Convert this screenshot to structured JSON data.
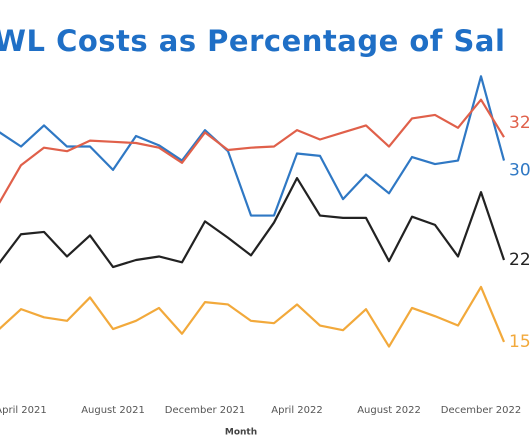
{
  "chart_data": {
    "type": "line",
    "title": "WL Costs as Percentage of Sal",
    "x_label": "Month",
    "categories": [
      null,
      "April 2021",
      null,
      null,
      null,
      "August 2021",
      null,
      null,
      null,
      "December 2021",
      null,
      null,
      null,
      "April 2022",
      null,
      null,
      null,
      "August 2022",
      null,
      null,
      null,
      "December 2022",
      null
    ],
    "ylim": [
      10,
      40
    ],
    "series": [
      {
        "name": "Blue",
        "color": "#2f78c4",
        "values": [
          33.0,
          31.7,
          33.5,
          31.7,
          31.7,
          29.7,
          32.6,
          31.8,
          30.5,
          33.1,
          31.3,
          25.8,
          25.8,
          31.1,
          30.9,
          27.2,
          29.3,
          27.7,
          30.8,
          30.2,
          30.5,
          37.7,
          30.5
        ],
        "value_labels": [
          null,
          null,
          null,
          null,
          null,
          null,
          null,
          null,
          null,
          null,
          null,
          null,
          null,
          null,
          null,
          null,
          null,
          null,
          null,
          null,
          null,
          null,
          "30"
        ]
      },
      {
        "name": "Red",
        "color": "#e0604a",
        "values": [
          26.7,
          30.1,
          31.6,
          31.3,
          32.2,
          32.1,
          32.0,
          31.6,
          30.3,
          32.9,
          31.4,
          31.6,
          31.7,
          33.1,
          32.3,
          32.9,
          33.5,
          31.7,
          34.1,
          34.4,
          33.3,
          35.7,
          32.5
        ],
        "value_labels": [
          null,
          null,
          null,
          null,
          null,
          null,
          null,
          null,
          null,
          null,
          null,
          null,
          null,
          null,
          null,
          null,
          null,
          null,
          null,
          null,
          null,
          null,
          "32%"
        ]
      },
      {
        "name": "Black",
        "color": "#222222",
        "values": [
          21.6,
          24.2,
          24.4,
          22.3,
          24.1,
          21.4,
          22.0,
          22.3,
          21.8,
          25.3,
          23.9,
          22.4,
          25.2,
          29.0,
          25.8,
          25.6,
          25.6,
          21.9,
          25.7,
          25.0,
          22.3,
          27.8,
          22.0
        ],
        "value_labels": [
          null,
          null,
          null,
          null,
          null,
          null,
          null,
          null,
          null,
          null,
          null,
          null,
          null,
          null,
          null,
          null,
          null,
          null,
          null,
          null,
          null,
          null,
          "22"
        ]
      },
      {
        "name": "Orange",
        "color": "#f2a93b",
        "values": [
          16.0,
          17.8,
          17.1,
          16.8,
          18.8,
          16.1,
          16.8,
          17.9,
          15.7,
          18.4,
          18.2,
          16.8,
          16.6,
          18.2,
          16.4,
          16.0,
          17.8,
          14.6,
          17.9,
          17.2,
          16.4,
          19.7,
          15.0
        ],
        "value_labels": [
          null,
          null,
          null,
          null,
          null,
          null,
          null,
          null,
          null,
          null,
          null,
          null,
          null,
          null,
          null,
          null,
          null,
          null,
          null,
          null,
          null,
          null,
          "15"
        ]
      }
    ]
  }
}
